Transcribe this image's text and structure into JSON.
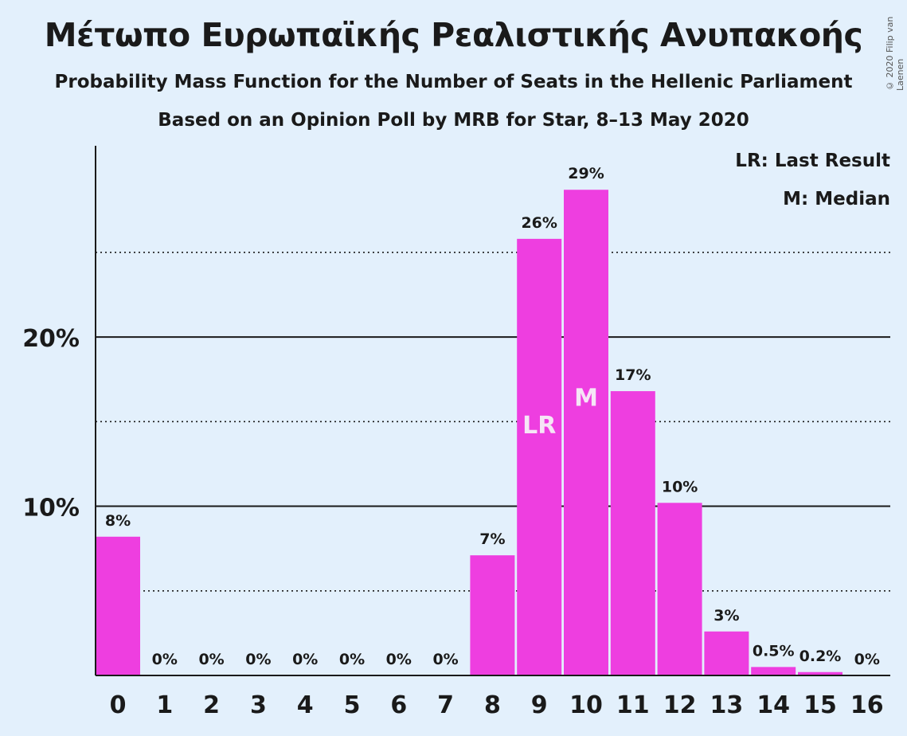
{
  "title": "Μέτωπο Ευρωπαϊκής Ρεαλιστικής Ανυπακοής",
  "subtitle1": "Probability Mass Function for the Number of Seats in the Hellenic Parliament",
  "subtitle2": "Based on an Opinion Poll by MRB for Star, 8–13 May 2020",
  "copyright": "© 2020 Filip van Laenen",
  "legend": {
    "last_result": "LR: Last Result",
    "median": "M: Median"
  },
  "colors": {
    "bar": "#ee3ee0",
    "background": "#e3f0fc",
    "inbar_text": "#f6e5f6"
  },
  "chart_data": {
    "type": "bar",
    "categories": [
      "0",
      "1",
      "2",
      "3",
      "4",
      "5",
      "6",
      "7",
      "8",
      "9",
      "10",
      "11",
      "12",
      "13",
      "14",
      "15",
      "16"
    ],
    "values": [
      8.2,
      0,
      0,
      0,
      0,
      0,
      0,
      0,
      7.1,
      25.8,
      28.7,
      16.8,
      10.2,
      2.6,
      0.5,
      0.2,
      0
    ],
    "labels": [
      "8%",
      "0%",
      "0%",
      "0%",
      "0%",
      "0%",
      "0%",
      "0%",
      "7%",
      "26%",
      "29%",
      "17%",
      "10%",
      "3%",
      "0.5%",
      "0.2%",
      "0%"
    ],
    "markers": {
      "9": "LR",
      "10": "M"
    },
    "yticks": [
      10,
      20
    ],
    "ytick_labels": [
      "10%",
      "20%"
    ],
    "minor_gridlines": [
      5,
      15,
      25
    ],
    "ylim": [
      0,
      31.3
    ],
    "grid": true,
    "legend_position": "top-right"
  }
}
